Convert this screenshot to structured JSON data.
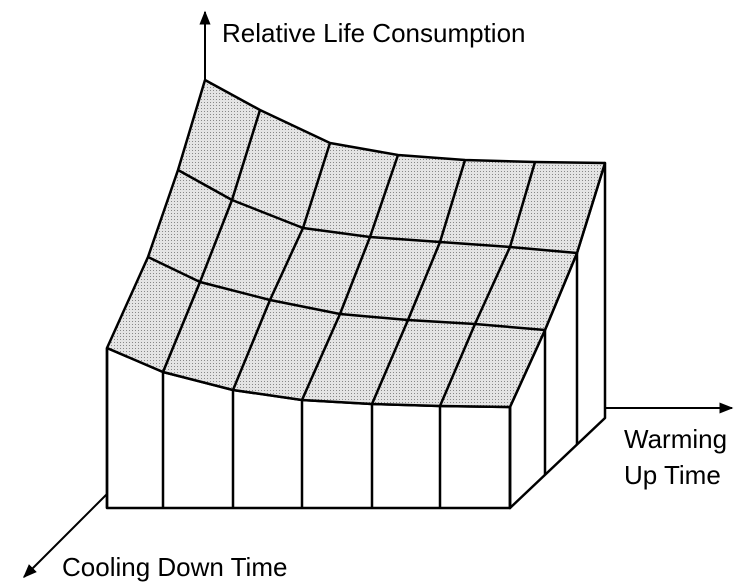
{
  "labels": {
    "vertical_axis": "Relative Life Consumption",
    "warming_axis": [
      "Warming",
      "Up Time"
    ],
    "cooling_axis": "Cooling Down Time"
  }
}
